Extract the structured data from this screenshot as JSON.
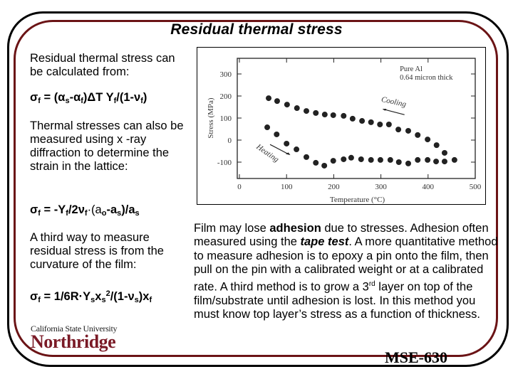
{
  "slide": {
    "title": "Residual thermal stress",
    "left": {
      "intro": "Residual thermal stress can be calculated from:",
      "eq1": {
        "sigma": "σ",
        "sub_f": "f",
        "eq": " = (",
        "alpha": "α",
        "sub_s": "s",
        "minus": "-",
        "alpha2": "α",
        "sub_f2": "f",
        "rest": ")ΔT Y",
        "sub_f3": "f",
        "div": "/(1-",
        "nu": "ν",
        "sub_f4": "f",
        "close": ")"
      },
      "xray_text": "Thermal stresses can also be measured using x -ray diffraction to determine the strain in the lattice:",
      "eq2": {
        "sigma": "σ",
        "sub_f": "f",
        "eq": " = -Y",
        "sub_f2": "f",
        "mid": "/2ν",
        "sub_f3": "f",
        "rest": "·(a",
        "sub_o": "o",
        "minus": "-a",
        "sub_s": "s",
        "div": ")/a",
        "sub_s2": "s"
      },
      "curv_text": "A third way to measure residual stress is from the curvature of the film:",
      "eq3": {
        "sigma": "σ",
        "sub_f": "f",
        "eq": " = 1/6R·Y",
        "sub_s": "s",
        "x": "x",
        "sub_s2": "s",
        "sup2": "2",
        "div": "/(1-ν",
        "sub_s3": "s",
        "close": ")x",
        "sub_f2": "f"
      }
    },
    "right": {
      "p1": "Film may lose ",
      "adhesion": "adhesion",
      "p2": " due to stresses.  Adhesion often measured using the ",
      "tape": "tape test",
      "p3": ".  A more quantitative method to measure adhesion is to epoxy a pin onto the film, then pull on the pin with a calibrated weight or at a calibrated rate. A third method is to grow a 3",
      "rd": "rd",
      "p4": " layer on top of the film/substrate until adhesion is lost.  In this method you must know top layer’s stress as a function of thickness."
    },
    "logo": {
      "top": "California State University",
      "main": "Northridge"
    },
    "course": "MSE-630"
  },
  "colors": {
    "frame_outer": "#000000",
    "frame_inner": "#6b1416",
    "logo": "#7a1a26"
  },
  "chart_data": {
    "type": "scatter",
    "title": "",
    "annotation": [
      "Pure Al",
      "0.64 micron thick"
    ],
    "labels": {
      "cooling": "Cooling",
      "heating": "Heating"
    },
    "xlabel": "Temperature (°C)",
    "ylabel": "Stress (MPa)",
    "xlim": [
      0,
      500
    ],
    "ylim": [
      -175,
      375
    ],
    "xticks": [
      0,
      100,
      200,
      300,
      400,
      500
    ],
    "yticks": [
      -100,
      0,
      100,
      200,
      300
    ],
    "series": [
      {
        "name": "Heating",
        "x": [
          59,
          79,
          100,
          121,
          142,
          162,
          180,
          199,
          221,
          237,
          258,
          279,
          299,
          320,
          338,
          358,
          378,
          399,
          417,
          435,
          456
        ],
        "y": [
          58,
          26,
          -16,
          -42,
          -77,
          -103,
          -116,
          -94,
          -87,
          -80,
          -87,
          -90,
          -90,
          -90,
          -100,
          -106,
          -90,
          -90,
          -97,
          -97,
          -90
        ]
      },
      {
        "name": "Cooling",
        "x": [
          62,
          80,
          101,
          122,
          142,
          162,
          181,
          199,
          221,
          240,
          260,
          279,
          298,
          317,
          337,
          358,
          378,
          399,
          418,
          435
        ],
        "y": [
          190,
          177,
          161,
          145,
          132,
          123,
          116,
          113,
          110,
          97,
          87,
          81,
          71,
          71,
          48,
          42,
          23,
          3,
          -23,
          -58
        ]
      }
    ]
  }
}
